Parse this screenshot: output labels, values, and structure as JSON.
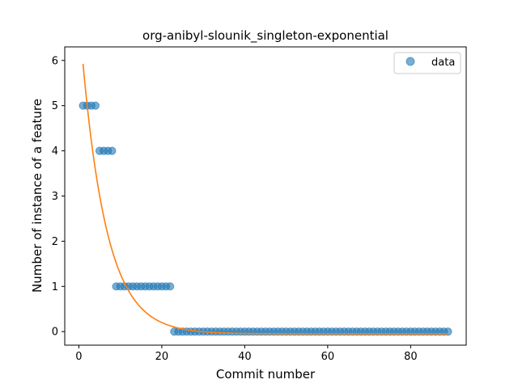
{
  "chart_data": {
    "type": "scatter",
    "title": "org-anibyl-slounik_singleton-exponential",
    "xlabel": "Commit number",
    "ylabel": "Number of instance of a feature",
    "xlim": [
      -3.4,
      93.4
    ],
    "ylim": [
      -0.3,
      6.3
    ],
    "xticks": [
      0,
      20,
      40,
      60,
      80
    ],
    "yticks": [
      0,
      1,
      2,
      3,
      4,
      5,
      6
    ],
    "legend_position": "top-right",
    "grid": false,
    "series": [
      {
        "name": "data",
        "kind": "scatter",
        "color": "#1f77b4",
        "x": [
          1,
          2,
          3,
          4,
          5,
          6,
          7,
          8,
          9,
          10,
          11,
          12,
          13,
          14,
          15,
          16,
          17,
          18,
          19,
          20,
          21,
          22,
          23,
          24,
          25,
          26,
          27,
          28,
          29,
          30,
          31,
          32,
          33,
          34,
          35,
          36,
          37,
          38,
          39,
          40,
          41,
          42,
          43,
          44,
          45,
          46,
          47,
          48,
          49,
          50,
          51,
          52,
          53,
          54,
          55,
          56,
          57,
          58,
          59,
          60,
          61,
          62,
          63,
          64,
          65,
          66,
          67,
          68,
          69,
          70,
          71,
          72,
          73,
          74,
          75,
          76,
          77,
          78,
          79,
          80,
          81,
          82,
          83,
          84,
          85,
          86,
          87,
          88,
          89
        ],
        "y": [
          5,
          5,
          5,
          5,
          4,
          4,
          4,
          4,
          1,
          1,
          1,
          1,
          1,
          1,
          1,
          1,
          1,
          1,
          1,
          1,
          1,
          1,
          0,
          0,
          0,
          0,
          0,
          0,
          0,
          0,
          0,
          0,
          0,
          0,
          0,
          0,
          0,
          0,
          0,
          0,
          0,
          0,
          0,
          0,
          0,
          0,
          0,
          0,
          0,
          0,
          0,
          0,
          0,
          0,
          0,
          0,
          0,
          0,
          0,
          0,
          0,
          0,
          0,
          0,
          0,
          0,
          0,
          0,
          0,
          0,
          0,
          0,
          0,
          0,
          0,
          0,
          0,
          0,
          0,
          0,
          0,
          0,
          0,
          0,
          0,
          0,
          0,
          0,
          0
        ]
      },
      {
        "kind": "line",
        "color": "#ff7f0e",
        "model": "exponential",
        "a": 7.06,
        "b": 0.167,
        "c": -0.05,
        "x_range": [
          1,
          89
        ]
      }
    ]
  }
}
